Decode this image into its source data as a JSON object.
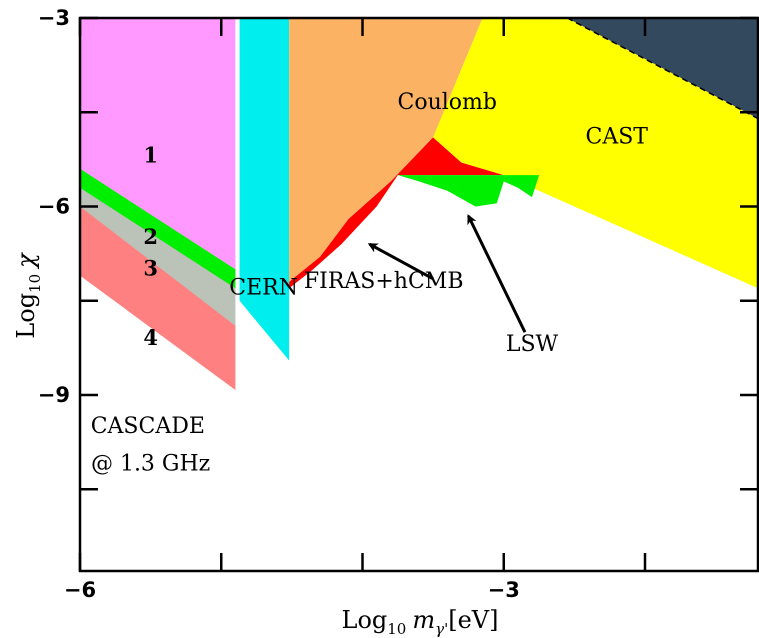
{
  "chart_data": {
    "type": "area",
    "title": "",
    "xlabel": {
      "prefix": "Log",
      "sub": "10",
      "var": "m",
      "varsub": "γ'",
      "unit": "[eV]"
    },
    "ylabel": {
      "prefix": "Log",
      "sub": "10",
      "var": "χ"
    },
    "xlim": [
      -6,
      -1.2
    ],
    "ylim": [
      -11.8,
      -3
    ],
    "x_tick_labels": [
      {
        "value": -6,
        "label": "−6"
      },
      {
        "value": -3,
        "label": "−3"
      }
    ],
    "y_tick_labels": [
      {
        "value": -3,
        "label": "−3"
      },
      {
        "value": -6,
        "label": "−6"
      },
      {
        "value": -9,
        "label": "−9"
      }
    ],
    "x_minor_ticks": [
      -5,
      -4,
      -2
    ],
    "y_minor_ticks": [
      -4.5,
      -7.5,
      -10.5
    ],
    "grid": false,
    "regions": [
      {
        "name": "CASCADE-1",
        "color": "#ff99ff",
        "points": [
          [
            -6,
            -3
          ],
          [
            -4.9,
            -3
          ],
          [
            -4.9,
            -7.3
          ],
          [
            -6,
            -5.5
          ]
        ]
      },
      {
        "name": "CASCADE-2",
        "color": "#00ee00",
        "points": [
          [
            -6,
            -5.4
          ],
          [
            -4.9,
            -7.0
          ],
          [
            -4.9,
            -7.4
          ],
          [
            -6,
            -5.8
          ]
        ]
      },
      {
        "name": "CASCADE-3",
        "color": "#bbc2b8",
        "points": [
          [
            -6,
            -5.7
          ],
          [
            -4.9,
            -7.3
          ],
          [
            -4.9,
            -8.1
          ],
          [
            -6,
            -6.3
          ]
        ]
      },
      {
        "name": "CASCADE-4",
        "color": "#ff8080",
        "points": [
          [
            -6,
            -6.0
          ],
          [
            -4.9,
            -7.9
          ],
          [
            -4.9,
            -8.92
          ],
          [
            -6,
            -7.1
          ]
        ]
      },
      {
        "name": "CERN",
        "color": "#00eeee",
        "points": [
          [
            -4.87,
            -3
          ],
          [
            -4.52,
            -3
          ],
          [
            -4.52,
            -8.45
          ],
          [
            -4.87,
            -7.5
          ]
        ]
      },
      {
        "name": "Coulomb",
        "color": "#fbb363",
        "points": [
          [
            -4.52,
            -3
          ],
          [
            -3.15,
            -3
          ],
          [
            -3.5,
            -4.9
          ],
          [
            -3.8,
            -5.6
          ],
          [
            -4.1,
            -6.2
          ],
          [
            -4.3,
            -6.8
          ],
          [
            -4.52,
            -7.2
          ]
        ]
      },
      {
        "name": "FIRAS+hCMB",
        "color": "#ff0000",
        "points": [
          [
            -4.52,
            -7.2
          ],
          [
            -4.3,
            -6.8
          ],
          [
            -4.1,
            -6.2
          ],
          [
            -3.8,
            -5.6
          ],
          [
            -3.5,
            -4.9
          ],
          [
            -3.3,
            -5.3
          ],
          [
            -3.0,
            -5.5
          ],
          [
            -3.75,
            -5.5
          ],
          [
            -3.9,
            -6.0
          ],
          [
            -4.15,
            -6.6
          ],
          [
            -4.35,
            -7.0
          ],
          [
            -4.52,
            -7.3
          ]
        ]
      },
      {
        "name": "CAST",
        "color": "#ffff00",
        "points": [
          [
            -3.5,
            -4.9
          ],
          [
            -3.15,
            -3
          ],
          [
            -2.55,
            -3
          ],
          [
            -1.2,
            -4.6
          ],
          [
            -1.2,
            -7.3
          ],
          [
            -2.0,
            -6.5
          ],
          [
            -3.0,
            -5.5
          ],
          [
            -3.3,
            -5.3
          ]
        ]
      },
      {
        "name": "CAST-high",
        "color": "#33495e",
        "points": [
          [
            -2.55,
            -3
          ],
          [
            -1.2,
            -3
          ],
          [
            -1.2,
            -4.6
          ]
        ]
      },
      {
        "name": "LSW",
        "color": "#00ee00",
        "points": [
          [
            -3.75,
            -5.5
          ],
          [
            -2.75,
            -5.5
          ],
          [
            -2.8,
            -5.85
          ],
          [
            -2.9,
            -5.7
          ],
          [
            -3.0,
            -5.6
          ],
          [
            -3.05,
            -5.95
          ],
          [
            -3.2,
            -6.0
          ],
          [
            -3.4,
            -5.75
          ],
          [
            -3.6,
            -5.6
          ]
        ]
      }
    ],
    "region_labels": [
      {
        "text": "Coulomb",
        "x": -3.4,
        "y": -4.45,
        "style": "region"
      },
      {
        "text": "CAST",
        "x": -2.2,
        "y": -5.0,
        "style": "region"
      },
      {
        "text": "CERN",
        "x": -4.7,
        "y": -7.4,
        "style": "region-small"
      },
      {
        "text": "FIRAS+hCMB",
        "x": -3.85,
        "y": -7.3,
        "style": "region"
      },
      {
        "text": "LSW",
        "x": -2.8,
        "y": -8.3,
        "style": "region"
      },
      {
        "text": "CASCADE",
        "x": -5.52,
        "y": -9.6,
        "style": "region"
      },
      {
        "text": "@ 1.3 GHz",
        "x": -5.5,
        "y": -10.2,
        "style": "region-small2"
      },
      {
        "text": "1",
        "x": -5.5,
        "y": -5.3,
        "style": "num"
      },
      {
        "text": "2",
        "x": -5.5,
        "y": -6.6,
        "style": "num"
      },
      {
        "text": "3",
        "x": -5.5,
        "y": -7.1,
        "style": "num"
      },
      {
        "text": "4",
        "x": -5.5,
        "y": -8.2,
        "style": "num"
      }
    ],
    "arrows": [
      {
        "name": "firas-arrow",
        "from": [
          -3.5,
          -7.15
        ],
        "to": [
          -3.95,
          -6.6
        ]
      },
      {
        "name": "lsw-arrow",
        "from": [
          -2.85,
          -8.0
        ],
        "to": [
          -3.25,
          -6.15
        ]
      }
    ]
  }
}
